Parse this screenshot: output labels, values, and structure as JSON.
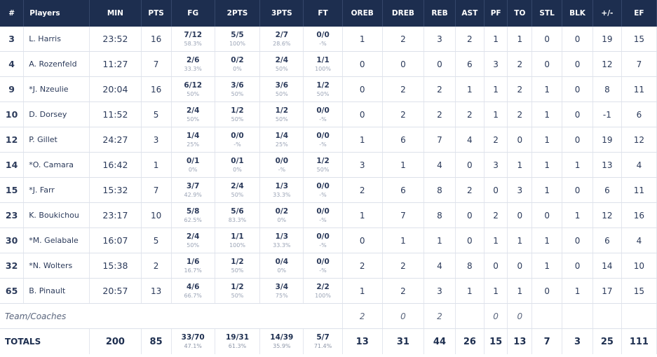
{
  "headers": [
    "#",
    "Players",
    "MIN",
    "PTS",
    "FG",
    "2PTS",
    "3PTS",
    "FT",
    "OREB",
    "DREB",
    "REB",
    "AST",
    "PF",
    "TO",
    "STL",
    "BLK",
    "+/-",
    "EF"
  ],
  "players": [
    {
      "num": "3",
      "name": "L. Harris",
      "min": "23:52",
      "pts": "16",
      "fg": "7/12",
      "fg_pct": "58.3%",
      "p2": "5/5",
      "p2_pct": "100%",
      "p3": "2/7",
      "p3_pct": "28.6%",
      "ft": "0/0",
      "ft_pct": "-%",
      "oreb": "1",
      "dreb": "2",
      "reb": "3",
      "ast": "2",
      "pf": "1",
      "to": "1",
      "stl": "0",
      "blk": "0",
      "pm": "19",
      "ef": "15"
    },
    {
      "num": "4",
      "name": "A. Rozenfeld",
      "min": "11:27",
      "pts": "7",
      "fg": "2/6",
      "fg_pct": "33.3%",
      "p2": "0/2",
      "p2_pct": "0%",
      "p3": "2/4",
      "p3_pct": "50%",
      "ft": "1/1",
      "ft_pct": "100%",
      "oreb": "0",
      "dreb": "0",
      "reb": "0",
      "ast": "6",
      "pf": "3",
      "to": "2",
      "stl": "0",
      "blk": "0",
      "pm": "12",
      "ef": "7"
    },
    {
      "num": "9",
      "name": "*J. Nzeulie",
      "min": "20:04",
      "pts": "16",
      "fg": "6/12",
      "fg_pct": "50%",
      "p2": "3/6",
      "p2_pct": "50%",
      "p3": "3/6",
      "p3_pct": "50%",
      "ft": "1/2",
      "ft_pct": "50%",
      "oreb": "0",
      "dreb": "2",
      "reb": "2",
      "ast": "1",
      "pf": "1",
      "to": "2",
      "stl": "1",
      "blk": "0",
      "pm": "8",
      "ef": "11"
    },
    {
      "num": "10",
      "name": "D. Dorsey",
      "min": "11:52",
      "pts": "5",
      "fg": "2/4",
      "fg_pct": "50%",
      "p2": "1/2",
      "p2_pct": "50%",
      "p3": "1/2",
      "p3_pct": "50%",
      "ft": "0/0",
      "ft_pct": "-%",
      "oreb": "0",
      "dreb": "2",
      "reb": "2",
      "ast": "2",
      "pf": "1",
      "to": "2",
      "stl": "1",
      "blk": "0",
      "pm": "-1",
      "ef": "6"
    },
    {
      "num": "12",
      "name": "P. Gillet",
      "min": "24:27",
      "pts": "3",
      "fg": "1/4",
      "fg_pct": "25%",
      "p2": "0/0",
      "p2_pct": "-%",
      "p3": "1/4",
      "p3_pct": "25%",
      "ft": "0/0",
      "ft_pct": "-%",
      "oreb": "1",
      "dreb": "6",
      "reb": "7",
      "ast": "4",
      "pf": "2",
      "to": "0",
      "stl": "1",
      "blk": "0",
      "pm": "19",
      "ef": "12"
    },
    {
      "num": "14",
      "name": "*O. Camara",
      "min": "16:42",
      "pts": "1",
      "fg": "0/1",
      "fg_pct": "0%",
      "p2": "0/1",
      "p2_pct": "0%",
      "p3": "0/0",
      "p3_pct": "-%",
      "ft": "1/2",
      "ft_pct": "50%",
      "oreb": "3",
      "dreb": "1",
      "reb": "4",
      "ast": "0",
      "pf": "3",
      "to": "1",
      "stl": "1",
      "blk": "1",
      "pm": "13",
      "ef": "4"
    },
    {
      "num": "15",
      "name": "*J. Farr",
      "min": "15:32",
      "pts": "7",
      "fg": "3/7",
      "fg_pct": "42.9%",
      "p2": "2/4",
      "p2_pct": "50%",
      "p3": "1/3",
      "p3_pct": "33.3%",
      "ft": "0/0",
      "ft_pct": "-%",
      "oreb": "2",
      "dreb": "6",
      "reb": "8",
      "ast": "2",
      "pf": "0",
      "to": "3",
      "stl": "1",
      "blk": "0",
      "pm": "6",
      "ef": "11"
    },
    {
      "num": "23",
      "name": "K. Boukichou",
      "min": "23:17",
      "pts": "10",
      "fg": "5/8",
      "fg_pct": "62.5%",
      "p2": "5/6",
      "p2_pct": "83.3%",
      "p3": "0/2",
      "p3_pct": "0%",
      "ft": "0/0",
      "ft_pct": "-%",
      "oreb": "1",
      "dreb": "7",
      "reb": "8",
      "ast": "0",
      "pf": "2",
      "to": "0",
      "stl": "0",
      "blk": "1",
      "pm": "12",
      "ef": "16"
    },
    {
      "num": "30",
      "name": "*M. Gelabale",
      "min": "16:07",
      "pts": "5",
      "fg": "2/4",
      "fg_pct": "50%",
      "p2": "1/1",
      "p2_pct": "100%",
      "p3": "1/3",
      "p3_pct": "33.3%",
      "ft": "0/0",
      "ft_pct": "-%",
      "oreb": "0",
      "dreb": "1",
      "reb": "1",
      "ast": "0",
      "pf": "1",
      "to": "1",
      "stl": "1",
      "blk": "0",
      "pm": "6",
      "ef": "4"
    },
    {
      "num": "32",
      "name": "*N. Wolters",
      "min": "15:38",
      "pts": "2",
      "fg": "1/6",
      "fg_pct": "16.7%",
      "p2": "1/2",
      "p2_pct": "50%",
      "p3": "0/4",
      "p3_pct": "0%",
      "ft": "0/0",
      "ft_pct": "-%",
      "oreb": "2",
      "dreb": "2",
      "reb": "4",
      "ast": "8",
      "pf": "0",
      "to": "0",
      "stl": "1",
      "blk": "0",
      "pm": "14",
      "ef": "10"
    },
    {
      "num": "65",
      "name": "B. Pinault",
      "min": "20:57",
      "pts": "13",
      "fg": "4/6",
      "fg_pct": "66.7%",
      "p2": "1/2",
      "p2_pct": "50%",
      "p3": "3/4",
      "p3_pct": "75%",
      "ft": "2/2",
      "ft_pct": "100%",
      "oreb": "1",
      "dreb": "2",
      "reb": "3",
      "ast": "1",
      "pf": "1",
      "to": "1",
      "stl": "0",
      "blk": "1",
      "pm": "17",
      "ef": "15"
    }
  ],
  "coaches": {
    "label": "Team/Coaches",
    "oreb": "2",
    "dreb": "0",
    "reb": "2",
    "pf": "0",
    "to": "0"
  },
  "totals": {
    "label": "TOTALS",
    "min": "200",
    "pts": "85",
    "fg": "33/70",
    "fg_pct": "47.1%",
    "p2": "19/31",
    "p2_pct": "61.3%",
    "p3": "14/39",
    "p3_pct": "35.9%",
    "ft": "5/7",
    "ft_pct": "71.4%",
    "oreb": "13",
    "dreb": "31",
    "reb": "44",
    "ast": "26",
    "pf": "15",
    "to": "13",
    "stl": "7",
    "blk": "3",
    "pm": "25",
    "ef": "111"
  }
}
